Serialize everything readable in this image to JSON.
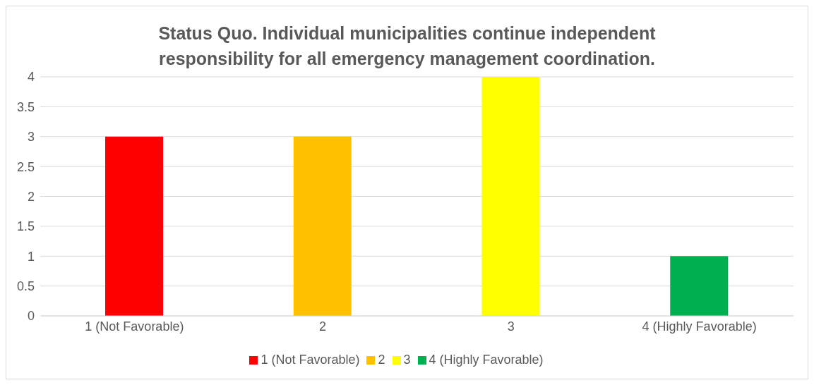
{
  "chart_data": {
    "type": "bar",
    "title": "Status Quo.  Individual municipalities continue independent responsibility for all emergency management coordination.",
    "categories": [
      "1 (Not Favorable)",
      "2",
      "3",
      "4 (Highly Favorable)"
    ],
    "series": [
      {
        "name": "1 (Not Favorable)",
        "color": "#ff0000",
        "values": [
          3,
          null,
          null,
          null
        ]
      },
      {
        "name": "2",
        "color": "#ffc000",
        "values": [
          null,
          3,
          null,
          null
        ]
      },
      {
        "name": "3",
        "color": "#ffff00",
        "values": [
          null,
          null,
          4,
          null
        ]
      },
      {
        "name": "4 (Highly Favorable)",
        "color": "#00b050",
        "values": [
          null,
          null,
          null,
          1
        ]
      }
    ],
    "stacked": true,
    "ylim": [
      0,
      4
    ],
    "yticks": [
      0,
      0.5,
      1,
      1.5,
      2,
      2.5,
      3,
      3.5,
      4
    ],
    "grid": "y",
    "legend": "bottom"
  }
}
